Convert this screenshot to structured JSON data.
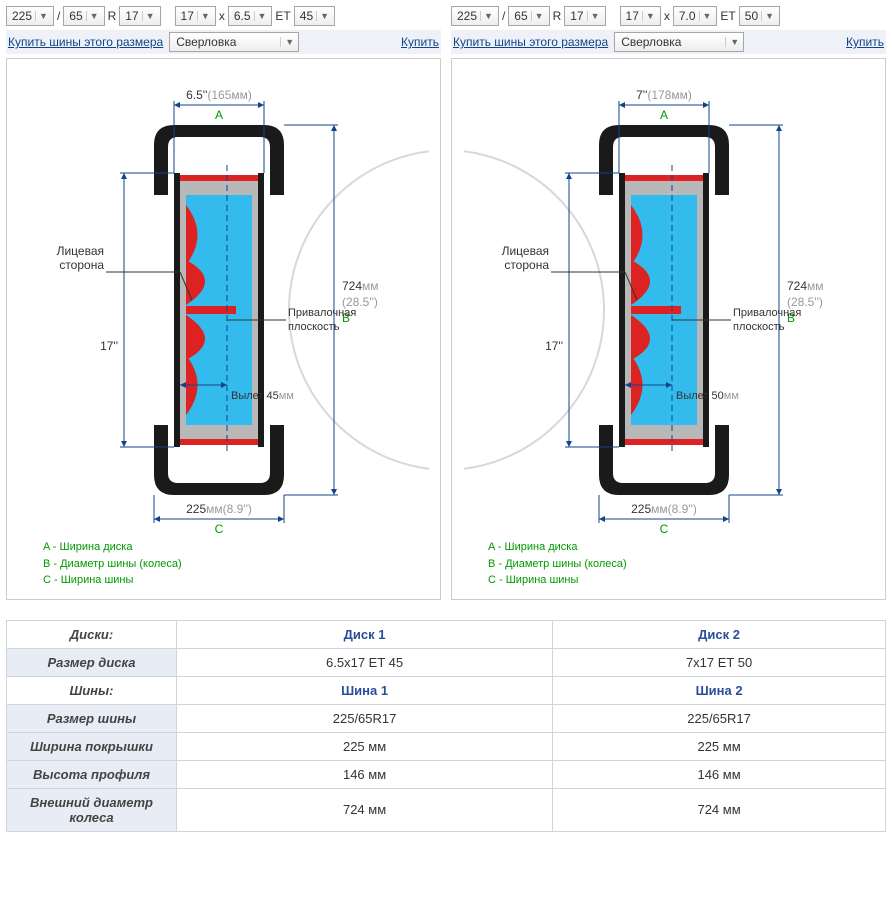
{
  "configs": [
    {
      "tire_width": "225",
      "tire_profile": "65",
      "tire_r": "17",
      "rim_diam": "17",
      "rim_width": "6.5",
      "et": "45",
      "buy_tires_label": "Купить шины этого размера",
      "drill_label": "Сверловка",
      "buy_label": "Купить",
      "diagram": {
        "top_dim": "6.5''(165мм)",
        "top_letter": "A",
        "right_dim_mm": "724мм",
        "right_dim_in": "(28.5'')",
        "right_letter": "B",
        "face_label_1": "Лицевая",
        "face_label_2": "сторона",
        "mount_label_1": "Привалочная",
        "mount_label_2": "плоскость",
        "rim_height": "17''",
        "offset_label": "Вылет 45мм",
        "bottom_dim": "225мм(8.9'')",
        "bottom_letter": "C",
        "colors": {
          "tire": "#1a1a1a",
          "rim_fill": "#b8b8b8",
          "rim_inner": "#33bbee",
          "hub": "#dd2222",
          "dim_line": "#114488",
          "mm_text": "#999999",
          "letter": "#009900",
          "circle": "#d8d8d8"
        }
      }
    },
    {
      "tire_width": "225",
      "tire_profile": "65",
      "tire_r": "17",
      "rim_diam": "17",
      "rim_width": "7.0",
      "et": "50",
      "buy_tires_label": "Купить шины этого размера",
      "drill_label": "Сверловка",
      "buy_label": "Купить",
      "diagram": {
        "top_dim": "7''(178мм)",
        "top_letter": "A",
        "right_dim_mm": "724мм",
        "right_dim_in": "(28.5'')",
        "right_letter": "B",
        "face_label_1": "Лицевая",
        "face_label_2": "сторона",
        "mount_label_1": "Привалочная",
        "mount_label_2": "плоскость",
        "rim_height": "17''",
        "offset_label": "Вылет 50мм",
        "bottom_dim": "225мм(8.9'')",
        "bottom_letter": "C",
        "colors": {
          "tire": "#1a1a1a",
          "rim_fill": "#b8b8b8",
          "rim_inner": "#33bbee",
          "hub": "#dd2222",
          "dim_line": "#114488",
          "mm_text": "#999999",
          "letter": "#009900",
          "circle": "#d8d8d8"
        }
      }
    }
  ],
  "legend": {
    "a": "A - Ширина диска",
    "b": "B - Диаметр шины (колеса)",
    "c": "C - Ширина шины"
  },
  "table": {
    "rows": [
      {
        "type": "hdr",
        "label": "Диски:",
        "v1": "Диск 1",
        "v2": "Диск 2"
      },
      {
        "type": "data",
        "label": "Размер диска",
        "v1": "6.5x17 ET 45",
        "v2": "7x17 ET 50"
      },
      {
        "type": "hdr",
        "label": "Шины:",
        "v1": "Шина 1",
        "v2": "Шина 2"
      },
      {
        "type": "data",
        "label": "Размер шины",
        "v1": "225/65R17",
        "v2": "225/65R17"
      },
      {
        "type": "data",
        "label": "Ширина покрышки",
        "v1": "225 мм",
        "v2": "225 мм"
      },
      {
        "type": "data",
        "label": "Высота профиля",
        "v1": "146 мм",
        "v2": "146 мм"
      },
      {
        "type": "data",
        "label": "Внешний диаметр колеса",
        "v1": "724 мм",
        "v2": "724 мм"
      }
    ]
  },
  "labels": {
    "slash": "/",
    "R": "R",
    "x": "x",
    "ET": "ET"
  }
}
